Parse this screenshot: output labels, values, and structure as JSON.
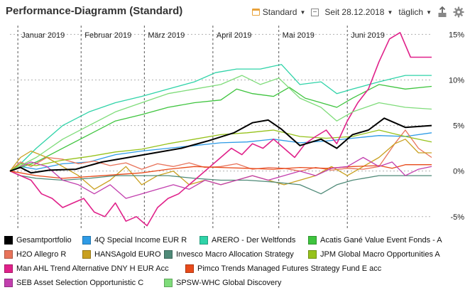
{
  "header": {
    "title": "Performance-Diagramm (Standard)",
    "preset_label": "Standard",
    "since_label": "Seit 28.12.2018",
    "interval_label": "täglich"
  },
  "colors": {
    "grid": "#b0b0b0",
    "axis": "#333333"
  },
  "chart_data": {
    "type": "line",
    "title": "Performance-Diagramm (Standard)",
    "xlabel": "",
    "ylabel": "",
    "x_range": [
      0,
      160
    ],
    "ylim": [
      -6.5,
      15.5
    ],
    "y_ticks": [
      -5,
      0,
      5,
      10,
      15
    ],
    "y_tick_labels": [
      "-5%",
      "0%",
      "5%",
      "10%",
      "15%"
    ],
    "month_ticks": [
      {
        "x": 3,
        "label": "Januar 2019"
      },
      {
        "x": 27,
        "label": "Februar 2019"
      },
      {
        "x": 51,
        "label": "März 2019"
      },
      {
        "x": 77,
        "label": "April 2019"
      },
      {
        "x": 102,
        "label": "Mai 2019"
      },
      {
        "x": 128,
        "label": "Juni 2019"
      }
    ],
    "grid": true,
    "legend_position": "bottom",
    "series": [
      {
        "name": "Gesamtportfolio",
        "color": "#000000",
        "width": 2,
        "points": [
          [
            0,
            0
          ],
          [
            4,
            0.4
          ],
          [
            8,
            -0.2
          ],
          [
            15,
            0.1
          ],
          [
            25,
            0.2
          ],
          [
            35,
            1.0
          ],
          [
            45,
            1.5
          ],
          [
            55,
            2.0
          ],
          [
            65,
            2.5
          ],
          [
            75,
            3.3
          ],
          [
            85,
            4.2
          ],
          [
            92,
            5.3
          ],
          [
            98,
            5.6
          ],
          [
            103,
            4.6
          ],
          [
            110,
            2.8
          ],
          [
            118,
            3.5
          ],
          [
            124,
            2.5
          ],
          [
            130,
            4.0
          ],
          [
            136,
            4.5
          ],
          [
            142,
            5.8
          ],
          [
            150,
            4.8
          ],
          [
            160,
            5.0
          ]
        ]
      },
      {
        "name": "4Q Special Income EUR R",
        "color": "#2e9be6",
        "width": 1.3,
        "points": [
          [
            0,
            0
          ],
          [
            4,
            0.5
          ],
          [
            10,
            0.2
          ],
          [
            20,
            0.8
          ],
          [
            30,
            1.0
          ],
          [
            40,
            1.8
          ],
          [
            50,
            2.2
          ],
          [
            60,
            2.5
          ],
          [
            70,
            2.8
          ],
          [
            80,
            3.1
          ],
          [
            90,
            3.2
          ],
          [
            100,
            3.5
          ],
          [
            110,
            3.1
          ],
          [
            120,
            3.3
          ],
          [
            130,
            3.6
          ],
          [
            140,
            3.9
          ],
          [
            150,
            3.8
          ],
          [
            160,
            4.2
          ]
        ]
      },
      {
        "name": "ARERO - Der Weltfonds",
        "color": "#2fd3a8",
        "width": 1.3,
        "points": [
          [
            0,
            0
          ],
          [
            4,
            0.8
          ],
          [
            10,
            2.5
          ],
          [
            20,
            5.0
          ],
          [
            30,
            6.5
          ],
          [
            40,
            7.5
          ],
          [
            50,
            8.2
          ],
          [
            60,
            9.0
          ],
          [
            70,
            9.8
          ],
          [
            78,
            10.8
          ],
          [
            86,
            11.2
          ],
          [
            95,
            11.2
          ],
          [
            103,
            11.7
          ],
          [
            110,
            9.5
          ],
          [
            118,
            9.8
          ],
          [
            124,
            8.5
          ],
          [
            130,
            9.0
          ],
          [
            140,
            9.8
          ],
          [
            150,
            10.5
          ],
          [
            160,
            10.5
          ]
        ]
      },
      {
        "name": "Acatis Gané Value Event Fonds - A",
        "color": "#3ec43e",
        "width": 1.3,
        "points": [
          [
            0,
            0
          ],
          [
            4,
            0.4
          ],
          [
            10,
            1.0
          ],
          [
            20,
            2.5
          ],
          [
            30,
            4.0
          ],
          [
            40,
            5.5
          ],
          [
            50,
            6.2
          ],
          [
            60,
            7.0
          ],
          [
            70,
            7.5
          ],
          [
            80,
            7.8
          ],
          [
            86,
            9.0
          ],
          [
            92,
            8.5
          ],
          [
            100,
            8.2
          ],
          [
            106,
            9.2
          ],
          [
            112,
            8.0
          ],
          [
            118,
            7.5
          ],
          [
            124,
            7.0
          ],
          [
            130,
            8.0
          ],
          [
            140,
            9.5
          ],
          [
            150,
            9.0
          ],
          [
            160,
            9.3
          ]
        ]
      },
      {
        "name": "H2O Allegro R",
        "color": "#e8735a",
        "width": 1.3,
        "points": [
          [
            0,
            0
          ],
          [
            4,
            1.0
          ],
          [
            8,
            0.5
          ],
          [
            14,
            1.5
          ],
          [
            20,
            1.3
          ],
          [
            26,
            0.8
          ],
          [
            32,
            1.1
          ],
          [
            38,
            0.6
          ],
          [
            44,
            0.9
          ],
          [
            50,
            0.2
          ],
          [
            56,
            0.8
          ],
          [
            62,
            0.5
          ],
          [
            68,
            0.9
          ],
          [
            74,
            0.4
          ],
          [
            80,
            0.5
          ],
          [
            86,
            0.8
          ],
          [
            92,
            0.2
          ],
          [
            98,
            0.4
          ],
          [
            104,
            0.3
          ],
          [
            110,
            0.0
          ],
          [
            116,
            0.4
          ],
          [
            122,
            0.1
          ],
          [
            128,
            0.3
          ],
          [
            134,
            0.2
          ],
          [
            140,
            0.5
          ],
          [
            146,
            3.0
          ],
          [
            150,
            4.5
          ],
          [
            155,
            2.5
          ],
          [
            160,
            1.5
          ]
        ]
      },
      {
        "name": "HANSAgold EURO",
        "color": "#c9a020",
        "width": 1.3,
        "points": [
          [
            0,
            0
          ],
          [
            4,
            1.5
          ],
          [
            8,
            2.2
          ],
          [
            14,
            1.5
          ],
          [
            20,
            0.5
          ],
          [
            26,
            -0.5
          ],
          [
            32,
            -2.0
          ],
          [
            38,
            -1.0
          ],
          [
            44,
            0.5
          ],
          [
            50,
            -1.5
          ],
          [
            56,
            -0.5
          ],
          [
            62,
            0.0
          ],
          [
            68,
            -1.5
          ],
          [
            74,
            -1.0
          ],
          [
            80,
            -1.5
          ],
          [
            86,
            -1.0
          ],
          [
            92,
            -0.5
          ],
          [
            98,
            -1.0
          ],
          [
            104,
            -1.5
          ],
          [
            110,
            -1.0
          ],
          [
            116,
            -0.5
          ],
          [
            122,
            0.5
          ],
          [
            128,
            -0.5
          ],
          [
            134,
            0.5
          ],
          [
            140,
            1.5
          ],
          [
            146,
            3.0
          ],
          [
            150,
            3.5
          ],
          [
            155,
            2.0
          ],
          [
            160,
            2.0
          ]
        ]
      },
      {
        "name": "Invesco Macro Allocation Strategy",
        "color": "#4f8a78",
        "width": 1.3,
        "points": [
          [
            0,
            0
          ],
          [
            4,
            -0.5
          ],
          [
            10,
            -0.8
          ],
          [
            20,
            -1.0
          ],
          [
            30,
            -0.8
          ],
          [
            40,
            -0.5
          ],
          [
            50,
            -0.5
          ],
          [
            60,
            -0.5
          ],
          [
            70,
            -0.8
          ],
          [
            80,
            -1.0
          ],
          [
            90,
            -1.0
          ],
          [
            100,
            -1.2
          ],
          [
            110,
            -1.5
          ],
          [
            118,
            -2.5
          ],
          [
            124,
            -1.5
          ],
          [
            130,
            -1.0
          ],
          [
            140,
            -0.5
          ],
          [
            150,
            -0.5
          ],
          [
            160,
            -0.5
          ]
        ]
      },
      {
        "name": "JPM Global Macro Opportunities A",
        "color": "#96c21b",
        "width": 1.3,
        "points": [
          [
            0,
            0
          ],
          [
            4,
            0.8
          ],
          [
            10,
            0.6
          ],
          [
            20,
            1.2
          ],
          [
            30,
            1.6
          ],
          [
            40,
            2.1
          ],
          [
            50,
            2.4
          ],
          [
            60,
            3.0
          ],
          [
            70,
            3.5
          ],
          [
            80,
            4.0
          ],
          [
            90,
            4.2
          ],
          [
            100,
            4.5
          ],
          [
            110,
            3.8
          ],
          [
            120,
            3.6
          ],
          [
            130,
            3.8
          ],
          [
            140,
            4.5
          ],
          [
            150,
            3.8
          ],
          [
            160,
            3.2
          ]
        ]
      },
      {
        "name": "Man AHL Trend Alternative DNY H EUR Acc",
        "color": "#e0218a",
        "width": 1.6,
        "points": [
          [
            0,
            0
          ],
          [
            4,
            -0.5
          ],
          [
            8,
            -1.0
          ],
          [
            12,
            -2.5
          ],
          [
            16,
            -3.0
          ],
          [
            20,
            -4.0
          ],
          [
            24,
            -3.5
          ],
          [
            28,
            -3.0
          ],
          [
            32,
            -4.5
          ],
          [
            36,
            -5.0
          ],
          [
            40,
            -3.5
          ],
          [
            44,
            -5.5
          ],
          [
            48,
            -5.0
          ],
          [
            52,
            -6.0
          ],
          [
            56,
            -4.0
          ],
          [
            60,
            -3.0
          ],
          [
            64,
            -2.5
          ],
          [
            68,
            -1.5
          ],
          [
            72,
            -0.5
          ],
          [
            76,
            0.5
          ],
          [
            80,
            1.5
          ],
          [
            84,
            2.5
          ],
          [
            88,
            1.8
          ],
          [
            92,
            3.0
          ],
          [
            96,
            2.5
          ],
          [
            100,
            3.5
          ],
          [
            104,
            2.5
          ],
          [
            108,
            1.5
          ],
          [
            112,
            3.0
          ],
          [
            116,
            3.8
          ],
          [
            120,
            4.5
          ],
          [
            124,
            3.0
          ],
          [
            128,
            5.5
          ],
          [
            132,
            7.5
          ],
          [
            136,
            9.0
          ],
          [
            140,
            12.0
          ],
          [
            144,
            14.5
          ],
          [
            148,
            15.2
          ],
          [
            152,
            12.5
          ],
          [
            156,
            12.5
          ],
          [
            160,
            12.5
          ]
        ]
      },
      {
        "name": "Pimco Trends Managed Futures Strategy Fund E acc",
        "color": "#e84a1a",
        "width": 1.3,
        "points": [
          [
            0,
            0
          ],
          [
            4,
            -0.2
          ],
          [
            10,
            -0.5
          ],
          [
            20,
            -0.8
          ],
          [
            30,
            -0.6
          ],
          [
            40,
            -0.4
          ],
          [
            50,
            -0.2
          ],
          [
            60,
            0.2
          ],
          [
            70,
            0.5
          ],
          [
            80,
            0.4
          ],
          [
            90,
            0.3
          ],
          [
            100,
            0.2
          ],
          [
            110,
            0.4
          ],
          [
            120,
            0.3
          ],
          [
            130,
            0.5
          ],
          [
            140,
            0.6
          ],
          [
            145,
            0.3
          ],
          [
            150,
            0.7
          ],
          [
            160,
            0.7
          ]
        ]
      },
      {
        "name": "SEB Asset Selection Opportunistic C",
        "color": "#c23fae",
        "width": 1.3,
        "points": [
          [
            0,
            0
          ],
          [
            4,
            0.5
          ],
          [
            8,
            1.0
          ],
          [
            14,
            0.5
          ],
          [
            20,
            -1.0
          ],
          [
            26,
            -1.5
          ],
          [
            32,
            -2.5
          ],
          [
            38,
            -1.5
          ],
          [
            44,
            -3.0
          ],
          [
            50,
            -2.5
          ],
          [
            56,
            -2.0
          ],
          [
            62,
            -1.5
          ],
          [
            68,
            -2.0
          ],
          [
            74,
            -1.0
          ],
          [
            80,
            -1.5
          ],
          [
            86,
            -1.0
          ],
          [
            92,
            -0.5
          ],
          [
            98,
            -1.0
          ],
          [
            104,
            -0.5
          ],
          [
            110,
            0.0
          ],
          [
            116,
            -0.5
          ],
          [
            122,
            0.3
          ],
          [
            128,
            0.5
          ],
          [
            134,
            1.5
          ],
          [
            140,
            0.5
          ],
          [
            145,
            1.0
          ],
          [
            150,
            -0.5
          ],
          [
            155,
            0.2
          ],
          [
            160,
            0.5
          ]
        ]
      },
      {
        "name": "SPSW-WHC Global Discovery",
        "color": "#7fdc7a",
        "width": 1.3,
        "points": [
          [
            0,
            0
          ],
          [
            4,
            0.6
          ],
          [
            10,
            1.5
          ],
          [
            20,
            3.5
          ],
          [
            30,
            5.0
          ],
          [
            40,
            6.5
          ],
          [
            50,
            7.5
          ],
          [
            60,
            8.5
          ],
          [
            70,
            9.0
          ],
          [
            80,
            9.5
          ],
          [
            88,
            10.5
          ],
          [
            95,
            9.5
          ],
          [
            102,
            10.2
          ],
          [
            110,
            8.0
          ],
          [
            118,
            7.0
          ],
          [
            124,
            5.5
          ],
          [
            130,
            6.5
          ],
          [
            140,
            7.5
          ],
          [
            150,
            7.0
          ],
          [
            160,
            6.8
          ]
        ]
      }
    ]
  }
}
